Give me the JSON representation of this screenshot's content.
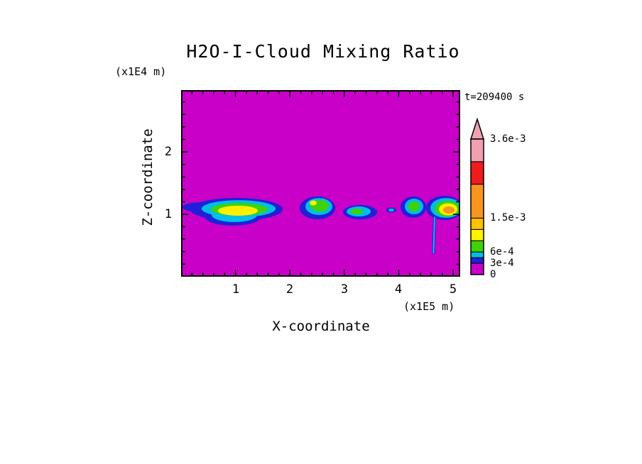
{
  "title": "H2O-I-Cloud Mixing Ratio",
  "timestamp": "t=209400 s",
  "axes": {
    "x_label": "X-coordinate",
    "x_unit": "(x1E5 m)",
    "z_label": "Z-coordinate",
    "z_unit": "(x1E4 m)",
    "x_tick_labels": [
      "1",
      "2",
      "3",
      "4",
      "5"
    ],
    "z_tick_labels": [
      "1",
      "2"
    ]
  },
  "colorbar": {
    "labels": [
      "3.6e-3",
      "1.5e-3",
      "6e-4",
      "3e-4",
      "0"
    ],
    "max_value": 0.0036,
    "segments": [
      {
        "color": "background",
        "v0": 0,
        "v1": 0.0003
      },
      {
        "color": "blue",
        "v0": 0.0003,
        "v1": 0.00045
      },
      {
        "color": "cyan",
        "v0": 0.00045,
        "v1": 0.0006
      },
      {
        "color": "green",
        "v0": 0.0006,
        "v1": 0.0009
      },
      {
        "color": "yellow",
        "v0": 0.0009,
        "v1": 0.0012
      },
      {
        "color": "yellow_orange",
        "v0": 0.0012,
        "v1": 0.0015
      },
      {
        "color": "orange",
        "v0": 0.0015,
        "v1": 0.0024
      },
      {
        "color": "red",
        "v0": 0.0024,
        "v1": 0.003
      },
      {
        "color": "pink",
        "v0": 0.003,
        "v1": 0.0036
      }
    ]
  },
  "palette": {
    "background": "#C800C8",
    "blue": "#2020D8",
    "cyan": "#00BEE6",
    "green": "#3FD20A",
    "yellow": "#FFF000",
    "yellow_orange": "#FFC000",
    "orange": "#F89420",
    "red": "#EE1C1C",
    "pink": "#F0A0B0"
  },
  "chart_data": {
    "type": "heatmap",
    "title": "H2O-I-Cloud Mixing Ratio",
    "time_seconds": 209400,
    "x_axis": {
      "label": "X-coordinate",
      "unit": "x1E5 m",
      "range": [
        0,
        5.13
      ],
      "major_ticks": [
        1,
        2,
        3,
        4,
        5
      ],
      "minor_tick_step": 0.2
    },
    "z_axis": {
      "label": "Z-coordinate",
      "unit": "x1E4 m",
      "range": [
        0,
        2.99
      ],
      "major_ticks": [
        1,
        2
      ],
      "minor_tick_step": 0.2
    },
    "value_levels": [
      0,
      0.0003,
      0.0006,
      0.0015,
      0.0036
    ],
    "background_value": 0,
    "clouds": [
      {
        "layers": [
          {
            "color": "blue",
            "cx": 1.018,
            "cz": 1.08,
            "rx": 0.849,
            "rz": 0.182
          },
          {
            "color": "blue",
            "cx": 0.953,
            "cz": 0.966,
            "rx": 0.52,
            "rz": 0.148
          },
          {
            "color": "blue",
            "cx": 0.392,
            "cz": 1.114,
            "rx": 0.366,
            "rz": 0.08
          },
          {
            "color": "cyan",
            "cx": 1.057,
            "cz": 1.09,
            "rx": 0.68,
            "rz": 0.136
          },
          {
            "color": "cyan",
            "cx": 0.979,
            "cz": 0.989,
            "rx": 0.418,
            "rz": 0.114
          },
          {
            "color": "green",
            "cx": 1.07,
            "cz": 1.08,
            "rx": 0.52,
            "rz": 0.102
          },
          {
            "color": "yellow",
            "cx": 1.044,
            "cz": 1.057,
            "rx": 0.366,
            "rz": 0.08
          }
        ]
      },
      {
        "layers": [
          {
            "color": "blue",
            "cx": 2.507,
            "cz": 1.102,
            "rx": 0.326,
            "rz": 0.182
          },
          {
            "color": "cyan",
            "cx": 2.533,
            "cz": 1.125,
            "rx": 0.248,
            "rz": 0.136
          },
          {
            "color": "green",
            "cx": 2.546,
            "cz": 1.136,
            "rx": 0.17,
            "rz": 0.091
          },
          {
            "color": "yellow",
            "cx": 2.428,
            "cz": 1.182,
            "rx": 0.065,
            "rz": 0.04
          }
        ]
      },
      {
        "layers": [
          {
            "color": "blue",
            "cx": 3.29,
            "cz": 1.034,
            "rx": 0.313,
            "rz": 0.114
          },
          {
            "color": "cyan",
            "cx": 3.264,
            "cz": 1.045,
            "rx": 0.222,
            "rz": 0.08
          },
          {
            "color": "green",
            "cx": 3.225,
            "cz": 1.045,
            "rx": 0.117,
            "rz": 0.045
          }
        ]
      },
      {
        "layers": [
          {
            "color": "blue",
            "cx": 3.864,
            "cz": 1.068,
            "rx": 0.091,
            "rz": 0.04
          },
          {
            "color": "cyan",
            "cx": 3.864,
            "cz": 1.068,
            "rx": 0.052,
            "rz": 0.023
          }
        ]
      },
      {
        "layers": [
          {
            "color": "blue",
            "cx": 4.269,
            "cz": 1.114,
            "rx": 0.235,
            "rz": 0.17
          },
          {
            "color": "cyan",
            "cx": 4.282,
            "cz": 1.125,
            "rx": 0.17,
            "rz": 0.125
          },
          {
            "color": "green",
            "cx": 4.282,
            "cz": 1.125,
            "rx": 0.104,
            "rz": 0.08
          }
        ]
      },
      {
        "layers": [
          {
            "color": "blue",
            "cx": 4.843,
            "cz": 1.102,
            "rx": 0.339,
            "rz": 0.193
          },
          {
            "color": "cyan",
            "cx": 4.87,
            "cz": 1.102,
            "rx": 0.287,
            "rz": 0.159
          },
          {
            "color": "green",
            "cx": 4.896,
            "cz": 1.09,
            "rx": 0.235,
            "rz": 0.125
          },
          {
            "color": "yellow",
            "cx": 4.909,
            "cz": 1.08,
            "rx": 0.17,
            "rz": 0.097
          },
          {
            "color": "orange",
            "cx": 4.922,
            "cz": 1.068,
            "rx": 0.104,
            "rz": 0.057
          }
        ]
      }
    ],
    "fall_streaks": [
      {
        "points": [
          [
            4.66,
            0.95
          ],
          [
            4.65,
            0.7
          ],
          [
            4.64,
            0.38
          ]
        ]
      }
    ]
  }
}
